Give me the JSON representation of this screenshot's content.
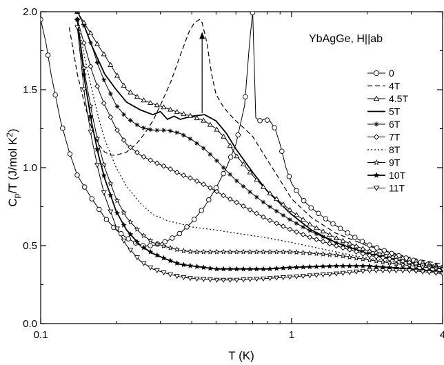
{
  "chart_data": {
    "type": "line",
    "annotation": "YbAgGe, H||ab",
    "xlabel": "T (K)",
    "ylabel_main": "C",
    "ylabel_sub": "p",
    "ylabel_rest": "/T (J/mol K",
    "ylabel_sup": "2",
    "ylabel_end": ")",
    "xscale": "log",
    "xlim": [
      0.1,
      4
    ],
    "ylim": [
      0,
      2
    ],
    "x_ticks": [
      {
        "value": 0.1,
        "label": "0.1"
      },
      {
        "value": 1,
        "label": "1"
      },
      {
        "value": 4,
        "label": "4"
      }
    ],
    "y_ticks": [
      {
        "value": 0.0,
        "label": "0.0"
      },
      {
        "value": 0.5,
        "label": "0.5"
      },
      {
        "value": 1.0,
        "label": "1.0"
      },
      {
        "value": 1.5,
        "label": "1.5"
      },
      {
        "value": 2.0,
        "label": "2.0"
      }
    ],
    "arrow": {
      "x": 0.44,
      "y_from": 1.35,
      "y_to": 1.87
    },
    "legend_position": "right",
    "series": [
      {
        "name": "0",
        "marker": "circle",
        "line": "solid",
        "x": [
          0.1,
          0.105,
          0.11,
          0.12,
          0.13,
          0.14,
          0.16,
          0.18,
          0.2,
          0.22,
          0.25,
          0.28,
          0.32,
          0.36,
          0.4,
          0.45,
          0.5,
          0.55,
          0.6,
          0.65,
          0.68,
          0.7,
          0.72,
          0.75,
          0.78,
          0.82,
          0.86,
          0.9,
          0.95,
          1.0,
          1.1,
          1.2,
          1.4,
          1.6,
          1.8,
          2.0,
          2.5,
          3.0,
          3.5,
          4.0
        ],
        "y": [
          1.95,
          1.8,
          1.6,
          1.3,
          1.1,
          0.95,
          0.8,
          0.68,
          0.6,
          0.55,
          0.5,
          0.5,
          0.53,
          0.58,
          0.65,
          0.75,
          0.87,
          1.0,
          1.15,
          1.4,
          1.8,
          2.0,
          1.32,
          1.3,
          1.31,
          1.3,
          1.25,
          1.15,
          1.0,
          0.9,
          0.8,
          0.74,
          0.66,
          0.6,
          0.55,
          0.51,
          0.45,
          0.41,
          0.38,
          0.36
        ]
      },
      {
        "name": "4T",
        "marker": "none",
        "line": "dashed",
        "x": [
          0.13,
          0.14,
          0.15,
          0.16,
          0.17,
          0.18,
          0.19,
          0.2,
          0.22,
          0.24,
          0.26,
          0.28,
          0.3,
          0.33,
          0.36,
          0.39,
          0.41,
          0.43,
          0.44,
          0.46,
          0.48,
          0.5,
          0.53,
          0.56,
          0.6,
          0.65,
          0.7,
          0.8,
          0.9,
          1.0,
          1.2,
          1.5,
          2.0,
          3.0,
          4.0
        ],
        "y": [
          1.9,
          1.6,
          1.4,
          1.25,
          1.15,
          1.1,
          1.08,
          1.08,
          1.1,
          1.15,
          1.22,
          1.3,
          1.4,
          1.55,
          1.72,
          1.87,
          1.93,
          1.95,
          1.93,
          1.8,
          1.6,
          1.47,
          1.4,
          1.35,
          1.3,
          1.25,
          1.2,
          1.05,
          0.92,
          0.8,
          0.68,
          0.58,
          0.5,
          0.42,
          0.38
        ]
      },
      {
        "name": "4.5T",
        "marker": "triangle-up",
        "line": "solid",
        "x": [
          0.14,
          0.15,
          0.16,
          0.17,
          0.18,
          0.2,
          0.22,
          0.25,
          0.28,
          0.32,
          0.36,
          0.4,
          0.45,
          0.5,
          0.55,
          0.6,
          0.7,
          0.8,
          1.0,
          1.2,
          1.5,
          2.0,
          3.0,
          4.0
        ],
        "y": [
          2.0,
          1.92,
          1.85,
          1.78,
          1.72,
          1.6,
          1.5,
          1.44,
          1.41,
          1.38,
          1.35,
          1.33,
          1.3,
          1.25,
          1.18,
          1.08,
          0.95,
          0.85,
          0.72,
          0.63,
          0.55,
          0.47,
          0.41,
          0.36
        ]
      },
      {
        "name": "5T",
        "marker": "none",
        "line": "solid-thick",
        "x": [
          0.15,
          0.16,
          0.18,
          0.2,
          0.22,
          0.25,
          0.28,
          0.3,
          0.32,
          0.34,
          0.36,
          0.4,
          0.45,
          0.5,
          0.55,
          0.6,
          0.7,
          0.8,
          1.0,
          1.2,
          1.5,
          2.0,
          3.0,
          4.0
        ],
        "y": [
          1.9,
          1.78,
          1.6,
          1.5,
          1.42,
          1.37,
          1.34,
          1.36,
          1.31,
          1.33,
          1.31,
          1.33,
          1.34,
          1.3,
          1.22,
          1.12,
          0.97,
          0.85,
          0.7,
          0.6,
          0.52,
          0.45,
          0.39,
          0.35
        ]
      },
      {
        "name": "6T",
        "marker": "asterisk",
        "line": "solid",
        "x": [
          0.14,
          0.15,
          0.16,
          0.17,
          0.18,
          0.2,
          0.22,
          0.25,
          0.28,
          0.32,
          0.36,
          0.4,
          0.45,
          0.5,
          0.55,
          0.6,
          0.7,
          0.8,
          1.0,
          1.2,
          1.5,
          2.0,
          3.0,
          4.0
        ],
        "y": [
          2.0,
          1.9,
          1.78,
          1.65,
          1.55,
          1.4,
          1.32,
          1.26,
          1.24,
          1.24,
          1.22,
          1.18,
          1.12,
          1.05,
          0.98,
          0.92,
          0.83,
          0.76,
          0.66,
          0.59,
          0.52,
          0.45,
          0.39,
          0.35
        ]
      },
      {
        "name": "7T",
        "marker": "diamond",
        "line": "solid",
        "x": [
          0.14,
          0.15,
          0.16,
          0.17,
          0.18,
          0.2,
          0.22,
          0.25,
          0.28,
          0.32,
          0.36,
          0.4,
          0.45,
          0.5,
          0.55,
          0.6,
          0.7,
          0.8,
          1.0,
          1.2,
          1.5,
          2.0,
          3.0,
          4.0
        ],
        "y": [
          1.95,
          1.78,
          1.62,
          1.5,
          1.4,
          1.25,
          1.15,
          1.08,
          1.04,
          1.0,
          0.96,
          0.93,
          0.89,
          0.85,
          0.81,
          0.78,
          0.72,
          0.67,
          0.6,
          0.55,
          0.5,
          0.44,
          0.39,
          0.35
        ]
      },
      {
        "name": "8T",
        "marker": "none",
        "line": "dotted",
        "x": [
          0.14,
          0.15,
          0.16,
          0.17,
          0.18,
          0.2,
          0.22,
          0.25,
          0.28,
          0.32,
          0.36,
          0.4,
          0.5,
          0.6,
          0.8,
          1.0,
          1.5,
          2.0,
          3.0,
          4.0
        ],
        "y": [
          1.95,
          1.7,
          1.5,
          1.32,
          1.18,
          1.0,
          0.88,
          0.77,
          0.7,
          0.66,
          0.64,
          0.62,
          0.6,
          0.58,
          0.55,
          0.52,
          0.46,
          0.42,
          0.38,
          0.35
        ]
      },
      {
        "name": "9T",
        "marker": "star-open",
        "line": "solid",
        "x": [
          0.14,
          0.15,
          0.16,
          0.17,
          0.18,
          0.2,
          0.22,
          0.25,
          0.28,
          0.32,
          0.36,
          0.4,
          0.5,
          0.6,
          0.8,
          1.0,
          1.5,
          2.0,
          3.0,
          4.0
        ],
        "y": [
          1.95,
          1.6,
          1.35,
          1.15,
          1.0,
          0.8,
          0.68,
          0.58,
          0.52,
          0.49,
          0.47,
          0.46,
          0.46,
          0.46,
          0.46,
          0.46,
          0.44,
          0.41,
          0.37,
          0.35
        ]
      },
      {
        "name": "10T",
        "marker": "star-filled",
        "line": "solid-thick",
        "x": [
          0.14,
          0.15,
          0.16,
          0.17,
          0.18,
          0.2,
          0.22,
          0.25,
          0.28,
          0.32,
          0.36,
          0.4,
          0.5,
          0.6,
          0.8,
          1.0,
          1.5,
          2.0,
          3.0,
          4.0
        ],
        "y": [
          1.95,
          1.55,
          1.28,
          1.08,
          0.93,
          0.72,
          0.6,
          0.5,
          0.45,
          0.41,
          0.38,
          0.37,
          0.35,
          0.35,
          0.35,
          0.36,
          0.37,
          0.37,
          0.35,
          0.33
        ]
      },
      {
        "name": "11T",
        "marker": "triangle-down",
        "line": "solid",
        "x": [
          0.14,
          0.15,
          0.16,
          0.17,
          0.18,
          0.2,
          0.22,
          0.25,
          0.28,
          0.32,
          0.36,
          0.4,
          0.5,
          0.6,
          0.8,
          1.0,
          1.5,
          2.0,
          3.0,
          3.5,
          4.0
        ],
        "y": [
          1.9,
          1.45,
          1.18,
          0.98,
          0.82,
          0.62,
          0.5,
          0.4,
          0.35,
          0.32,
          0.3,
          0.29,
          0.28,
          0.28,
          0.29,
          0.3,
          0.32,
          0.34,
          0.34,
          0.33,
          0.32
        ]
      }
    ]
  }
}
